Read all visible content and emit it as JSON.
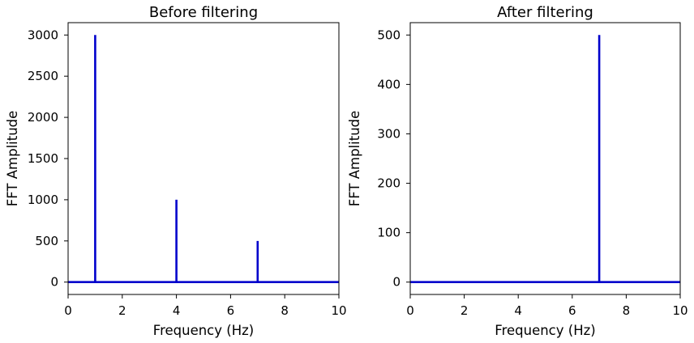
{
  "chart_data": [
    {
      "type": "line",
      "title": "Before filtering",
      "xlabel": "Frequency (Hz)",
      "ylabel": "FFT Amplitude",
      "xlim": [
        0,
        10
      ],
      "ylim": [
        -150,
        3150
      ],
      "xticks": [
        0,
        2,
        4,
        6,
        8,
        10
      ],
      "yticks": [
        0,
        500,
        1000,
        1500,
        2000,
        2500,
        3000
      ],
      "grid": false,
      "color": "#0000cc",
      "series": [
        {
          "x": [
            0,
            1,
            1,
            1,
            4,
            4,
            4,
            7,
            7,
            7,
            10
          ],
          "values": [
            0,
            0,
            3000,
            0,
            0,
            1000,
            0,
            0,
            500,
            0,
            0
          ]
        }
      ]
    },
    {
      "type": "line",
      "title": "After filtering",
      "xlabel": "Frequency (Hz)",
      "ylabel": "FFT Amplitude",
      "xlim": [
        0,
        10
      ],
      "ylim": [
        -25,
        525
      ],
      "xticks": [
        0,
        2,
        4,
        6,
        8,
        10
      ],
      "yticks": [
        0,
        100,
        200,
        300,
        400,
        500
      ],
      "grid": false,
      "color": "#0000cc",
      "series": [
        {
          "x": [
            0,
            7,
            7,
            7,
            10
          ],
          "values": [
            0,
            0,
            500,
            0,
            0
          ]
        }
      ]
    }
  ]
}
